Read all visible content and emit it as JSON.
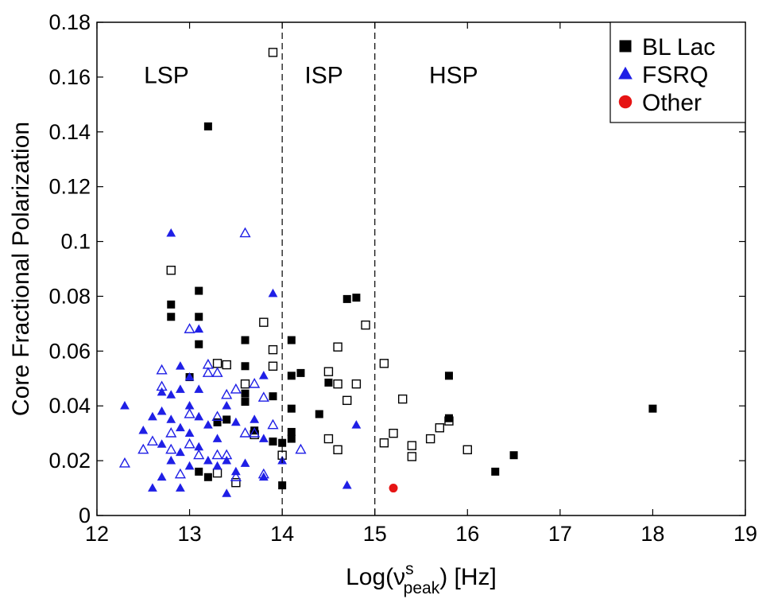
{
  "chart_data": {
    "type": "scatter",
    "title": "",
    "xlabel": "Log(ν^s_peak) [Hz]",
    "xlabel_parts": {
      "prefix": "Log(ν",
      "sup": "s",
      "sub": "peak",
      "suffix": ") [Hz]"
    },
    "ylabel": "Core Fractional Polarization",
    "xlim": [
      12,
      19
    ],
    "ylim": [
      0,
      0.18
    ],
    "xticks": [
      12,
      13,
      14,
      15,
      16,
      17,
      18,
      19
    ],
    "xtick_labels": [
      "12",
      "13",
      "14",
      "15",
      "16",
      "17",
      "18",
      "19"
    ],
    "yticks": [
      0,
      0.02,
      0.04,
      0.06,
      0.08,
      0.1,
      0.12,
      0.14,
      0.16,
      0.18
    ],
    "ytick_labels": [
      "0",
      "0.02",
      "0.04",
      "0.06",
      "0.08",
      "0.1",
      "0.12",
      "0.14",
      "0.16",
      "0.18"
    ],
    "grid": false,
    "legend_position": "top-right",
    "vlines": [
      14,
      15
    ],
    "regions": [
      {
        "label": "LSP",
        "x": 12.75,
        "y": 0.161
      },
      {
        "label": "ISP",
        "x": 14.45,
        "y": 0.161
      },
      {
        "label": "HSP",
        "x": 15.85,
        "y": 0.161
      }
    ],
    "colors": {
      "bllac": "#000000",
      "fsrq": "#1f1fe6",
      "other": "#e61414"
    },
    "legend": [
      {
        "label": "BL Lac",
        "marker": "square",
        "color": "#000000"
      },
      {
        "label": "FSRQ",
        "marker": "triangle",
        "color": "#1f1fe6"
      },
      {
        "label": "Other",
        "marker": "circle",
        "color": "#e61414"
      }
    ],
    "series": [
      {
        "name": "BL Lac",
        "marker": "square",
        "filled": true,
        "color": "#000000",
        "points": [
          [
            13.2,
            0.142
          ],
          [
            12.8,
            0.077
          ],
          [
            12.8,
            0.0725
          ],
          [
            13.1,
            0.082
          ],
          [
            13.1,
            0.0725
          ],
          [
            13.1,
            0.0625
          ],
          [
            13.6,
            0.064
          ],
          [
            13.6,
            0.0545
          ],
          [
            13.6,
            0.0445
          ],
          [
            13.6,
            0.0415
          ],
          [
            13.7,
            0.031
          ],
          [
            13.9,
            0.0435
          ],
          [
            13.9,
            0.027
          ],
          [
            14.0,
            0.0265
          ],
          [
            14.0,
            0.011
          ],
          [
            13.1,
            0.016
          ],
          [
            13.2,
            0.014
          ],
          [
            13.3,
            0.034
          ],
          [
            13.4,
            0.035
          ],
          [
            13.0,
            0.0505
          ],
          [
            14.1,
            0.064
          ],
          [
            14.1,
            0.051
          ],
          [
            14.1,
            0.039
          ],
          [
            14.1,
            0.0305
          ],
          [
            14.1,
            0.028
          ],
          [
            14.2,
            0.052
          ],
          [
            14.4,
            0.037
          ],
          [
            14.5,
            0.0485
          ],
          [
            14.7,
            0.079
          ],
          [
            14.8,
            0.0795
          ],
          [
            15.8,
            0.051
          ],
          [
            15.8,
            0.0355
          ],
          [
            16.3,
            0.016
          ],
          [
            16.5,
            0.022
          ],
          [
            18.0,
            0.039
          ]
        ]
      },
      {
        "name": "BL Lac (open)",
        "marker": "square",
        "filled": false,
        "color": "#000000",
        "points": [
          [
            13.9,
            0.169
          ],
          [
            12.8,
            0.0895
          ],
          [
            13.3,
            0.0555
          ],
          [
            13.4,
            0.055
          ],
          [
            13.6,
            0.048
          ],
          [
            13.7,
            0.0295
          ],
          [
            13.8,
            0.0705
          ],
          [
            13.9,
            0.0605
          ],
          [
            13.9,
            0.0545
          ],
          [
            14.0,
            0.022
          ],
          [
            13.5,
            0.012
          ],
          [
            13.3,
            0.0155
          ],
          [
            14.5,
            0.0525
          ],
          [
            14.6,
            0.0615
          ],
          [
            14.6,
            0.048
          ],
          [
            14.6,
            0.024
          ],
          [
            14.5,
            0.028
          ],
          [
            14.7,
            0.042
          ],
          [
            14.8,
            0.048
          ],
          [
            14.9,
            0.0695
          ],
          [
            15.1,
            0.0555
          ],
          [
            15.1,
            0.0265
          ],
          [
            15.2,
            0.03
          ],
          [
            15.3,
            0.0425
          ],
          [
            15.4,
            0.0255
          ],
          [
            15.4,
            0.0215
          ],
          [
            15.6,
            0.028
          ],
          [
            15.7,
            0.032
          ],
          [
            15.8,
            0.0345
          ],
          [
            16.0,
            0.024
          ]
        ]
      },
      {
        "name": "FSRQ",
        "marker": "triangle",
        "filled": true,
        "color": "#1f1fe6",
        "points": [
          [
            12.8,
            0.103
          ],
          [
            13.9,
            0.081
          ],
          [
            13.1,
            0.068
          ],
          [
            12.9,
            0.0545
          ],
          [
            13.0,
            0.0505
          ],
          [
            12.3,
            0.04
          ],
          [
            12.5,
            0.031
          ],
          [
            12.6,
            0.036
          ],
          [
            12.6,
            0.01
          ],
          [
            12.7,
            0.045
          ],
          [
            12.7,
            0.038
          ],
          [
            12.7,
            0.026
          ],
          [
            12.7,
            0.014
          ],
          [
            12.8,
            0.044
          ],
          [
            12.8,
            0.035
          ],
          [
            12.8,
            0.02
          ],
          [
            12.9,
            0.046
          ],
          [
            12.9,
            0.032
          ],
          [
            12.9,
            0.023
          ],
          [
            12.9,
            0.01
          ],
          [
            13.0,
            0.04
          ],
          [
            13.0,
            0.03
          ],
          [
            13.0,
            0.018
          ],
          [
            13.1,
            0.046
          ],
          [
            13.1,
            0.036
          ],
          [
            13.1,
            0.025
          ],
          [
            13.2,
            0.033
          ],
          [
            13.2,
            0.02
          ],
          [
            13.3,
            0.028
          ],
          [
            13.3,
            0.018
          ],
          [
            13.4,
            0.04
          ],
          [
            13.4,
            0.02
          ],
          [
            13.4,
            0.008
          ],
          [
            13.5,
            0.034
          ],
          [
            13.5,
            0.016
          ],
          [
            13.6,
            0.019
          ],
          [
            13.7,
            0.035
          ],
          [
            13.8,
            0.051
          ],
          [
            13.8,
            0.028
          ],
          [
            13.8,
            0.014
          ],
          [
            14.0,
            0.02
          ],
          [
            14.7,
            0.011
          ],
          [
            14.8,
            0.033
          ]
        ]
      },
      {
        "name": "FSRQ (open)",
        "marker": "triangle",
        "filled": false,
        "color": "#1f1fe6",
        "points": [
          [
            13.6,
            0.103
          ],
          [
            12.3,
            0.019
          ],
          [
            12.5,
            0.024
          ],
          [
            12.6,
            0.027
          ],
          [
            12.7,
            0.053
          ],
          [
            12.7,
            0.047
          ],
          [
            12.8,
            0.03
          ],
          [
            12.8,
            0.024
          ],
          [
            12.9,
            0.015
          ],
          [
            13.0,
            0.068
          ],
          [
            13.0,
            0.037
          ],
          [
            13.0,
            0.026
          ],
          [
            13.1,
            0.022
          ],
          [
            13.2,
            0.055
          ],
          [
            13.2,
            0.052
          ],
          [
            13.3,
            0.052
          ],
          [
            13.3,
            0.036
          ],
          [
            13.3,
            0.022
          ],
          [
            13.4,
            0.044
          ],
          [
            13.4,
            0.022
          ],
          [
            13.5,
            0.046
          ],
          [
            13.5,
            0.014
          ],
          [
            13.6,
            0.03
          ],
          [
            13.7,
            0.048
          ],
          [
            13.7,
            0.03
          ],
          [
            13.8,
            0.043
          ],
          [
            13.8,
            0.015
          ],
          [
            13.9,
            0.033
          ],
          [
            14.2,
            0.024
          ]
        ]
      },
      {
        "name": "Other",
        "marker": "circle",
        "filled": true,
        "color": "#e61414",
        "points": [
          [
            15.2,
            0.01
          ]
        ]
      }
    ]
  }
}
